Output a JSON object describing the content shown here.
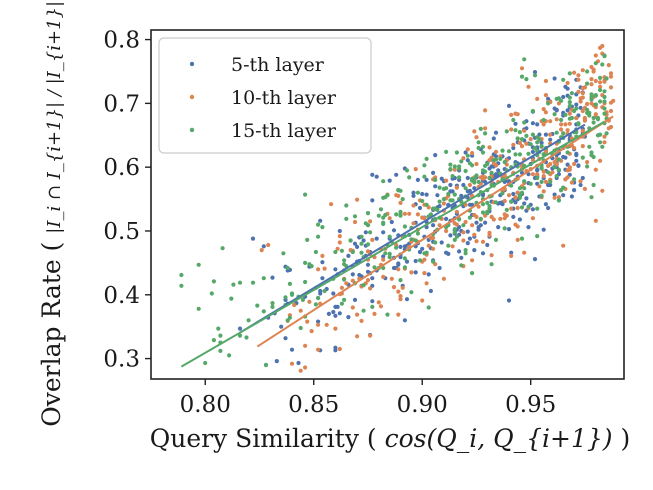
{
  "chart_data": {
    "type": "scatter",
    "title": "",
    "xlabel_prefix": "Query Similarity (",
    "xlabel_math": "cos(Q_i, Q_{i+1})",
    "xlabel_suffix": ")",
    "ylabel_prefix": "Overlap Rate (",
    "ylabel_math": "|I_i ∩ I_{i+1}| / |I_{i+1}|",
    "ylabel_suffix": ")",
    "xlim": [
      0.775,
      0.993
    ],
    "ylim": [
      0.268,
      0.815
    ],
    "xticks": [
      0.8,
      0.85,
      0.9,
      0.95
    ],
    "xtick_labels": [
      "0.80",
      "0.85",
      "0.90",
      "0.95"
    ],
    "yticks": [
      0.3,
      0.4,
      0.5,
      0.6,
      0.7,
      0.8
    ],
    "ytick_labels": [
      "0.3",
      "0.4",
      "0.5",
      "0.6",
      "0.7",
      "0.8"
    ],
    "legend_position": "upper-left",
    "series": [
      {
        "name": "5-th layer",
        "color": "#4c72b0",
        "fit": {
          "x_start": 0.816,
          "x_end": 0.975,
          "slope": 2.05,
          "intercept": -1.332
        },
        "cluster": {
          "x_min": 0.818,
          "x_max": 0.975,
          "center_slope": 2.0,
          "center_intercept": -1.3,
          "spread": 0.05,
          "count": 380,
          "seed": 11
        },
        "points": [
          {
            "x": 0.843,
            "y": 0.293
          },
          {
            "x": 0.84,
            "y": 0.314
          },
          {
            "x": 0.822,
            "y": 0.488
          },
          {
            "x": 0.816,
            "y": 0.347
          }
        ]
      },
      {
        "name": "10-th layer",
        "color": "#dd8452",
        "fit": {
          "x_start": 0.824,
          "x_end": 0.988,
          "slope": 2.2,
          "intercept": -1.494
        },
        "cluster": {
          "x_min": 0.826,
          "x_max": 0.988,
          "center_slope": 2.3,
          "center_intercept": -1.58,
          "spread": 0.055,
          "count": 380,
          "seed": 23
        },
        "points": [
          {
            "x": 0.982,
            "y": 0.787
          },
          {
            "x": 0.98,
            "y": 0.775
          },
          {
            "x": 0.829,
            "y": 0.478
          },
          {
            "x": 0.826,
            "y": 0.47
          }
        ]
      },
      {
        "name": "15-th layer",
        "color": "#55a868",
        "fit": {
          "x_start": 0.789,
          "x_end": 0.984,
          "slope": 1.97,
          "intercept": -1.267
        },
        "cluster": {
          "x_min": 0.79,
          "x_max": 0.985,
          "center_slope": 1.97,
          "center_intercept": -1.25,
          "spread": 0.05,
          "count": 380,
          "seed": 37
        },
        "points": [
          {
            "x": 0.789,
            "y": 0.431
          },
          {
            "x": 0.789,
            "y": 0.414
          },
          {
            "x": 0.797,
            "y": 0.447
          },
          {
            "x": 0.808,
            "y": 0.473
          }
        ]
      }
    ]
  }
}
